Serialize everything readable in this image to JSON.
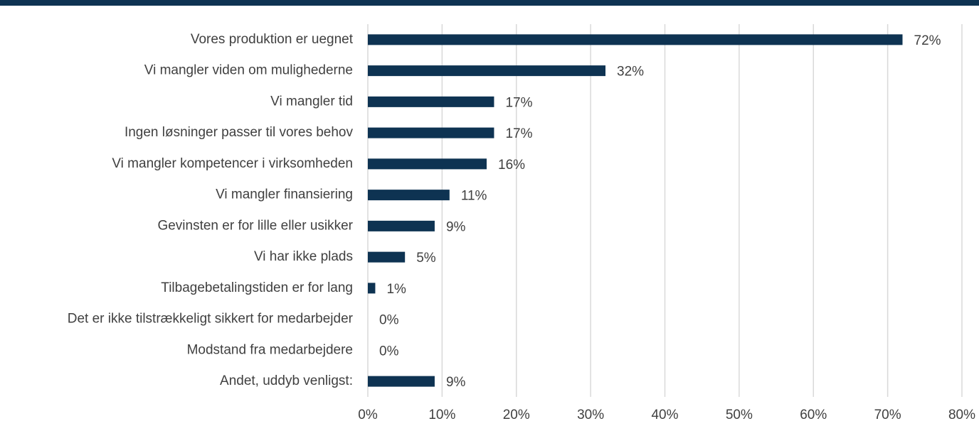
{
  "chart_data": {
    "type": "barh",
    "categories": [
      "Vores produktion er uegnet",
      "Vi mangler viden om mulighederne",
      "Vi mangler tid",
      "Ingen løsninger passer til vores behov",
      "Vi mangler kompetencer i virksomheden",
      "Vi mangler finansiering",
      "Gevinsten er for lille eller usikker",
      "Vi har ikke plads",
      "Tilbagebetalingstiden er for lang",
      "Det er ikke tilstrækkeligt sikkert for medarbejder",
      "Modstand fra medarbejdere",
      "Andet, uddyb venligst:"
    ],
    "values": [
      72,
      32,
      17,
      17,
      16,
      11,
      9,
      5,
      1,
      0,
      0,
      9
    ],
    "value_labels": [
      "72%",
      "32%",
      "17%",
      "17%",
      "16%",
      "11%",
      "9%",
      "5%",
      "1%",
      "0%",
      "0%",
      "9%"
    ],
    "color": "#0e3352",
    "xlim": [
      0,
      80
    ],
    "xticks": [
      {
        "value": 0,
        "label": "0%"
      },
      {
        "value": 10,
        "label": "10%"
      },
      {
        "value": 20,
        "label": "20%"
      },
      {
        "value": 30,
        "label": "30%"
      },
      {
        "value": 40,
        "label": "40%"
      },
      {
        "value": 50,
        "label": "50%"
      },
      {
        "value": 60,
        "label": "60%"
      },
      {
        "value": 70,
        "label": "70%"
      },
      {
        "value": 80,
        "label": "80%"
      }
    ],
    "grid": true
  }
}
